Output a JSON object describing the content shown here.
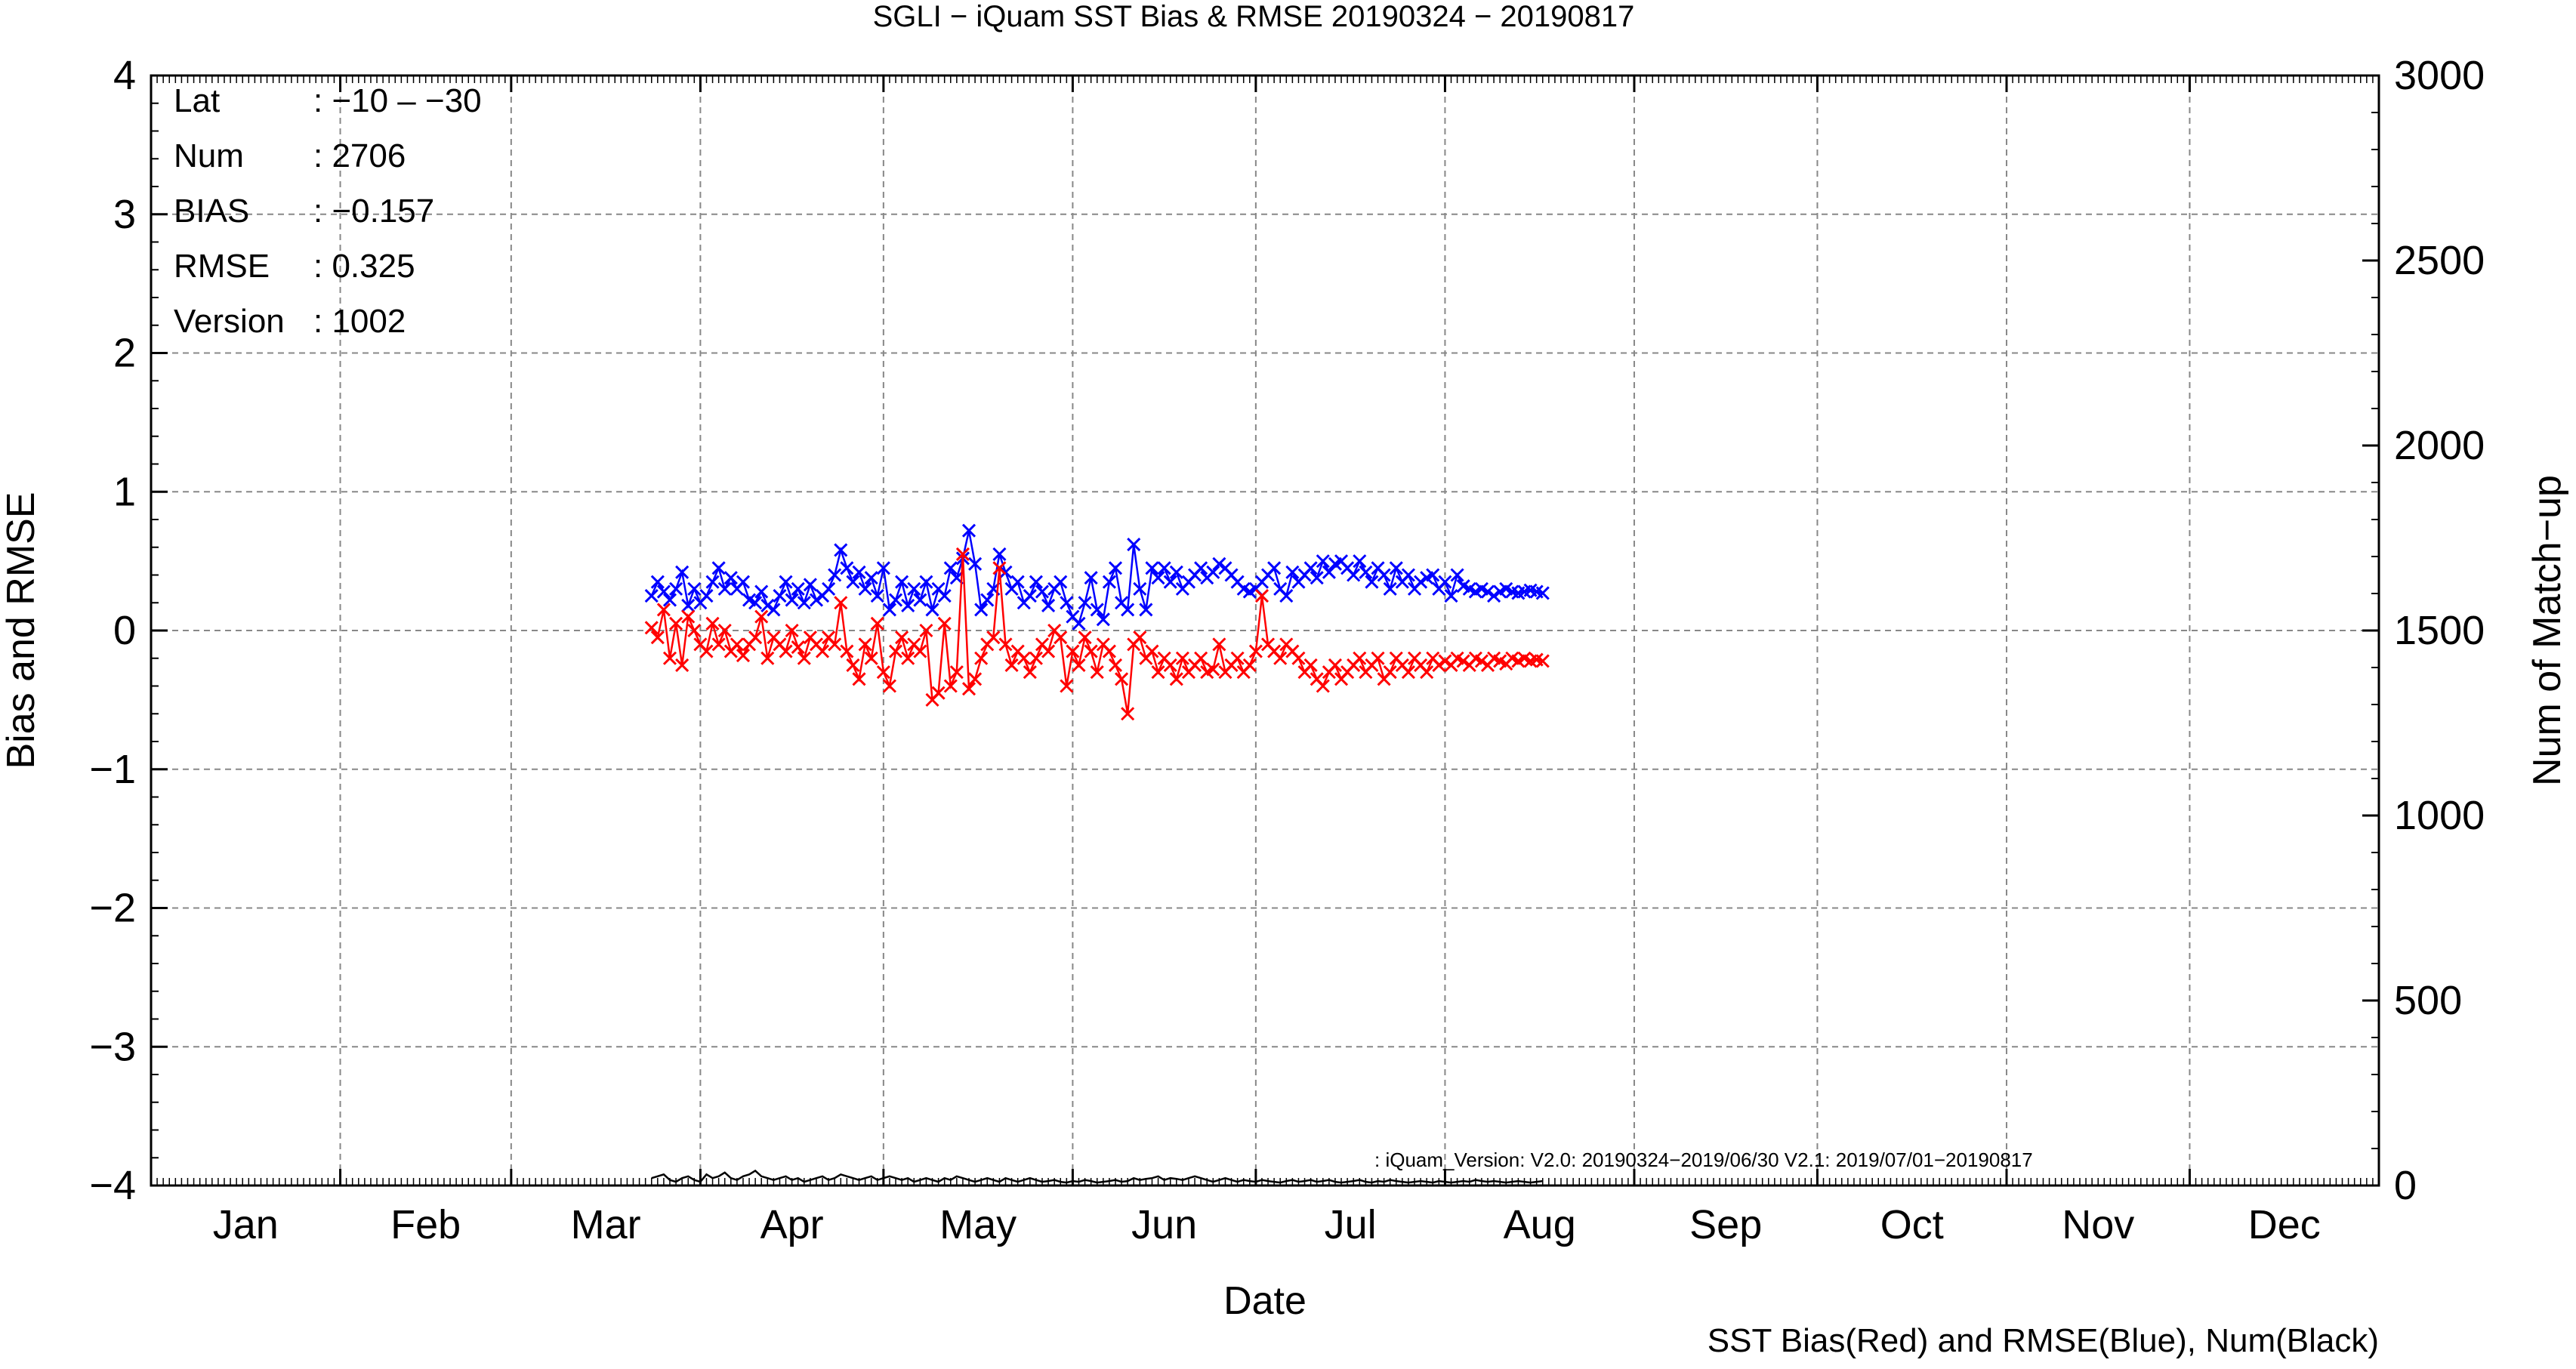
{
  "chart_data": {
    "type": "line",
    "title": "SGLI − iQuam  SST Bias & RMSE 20190324 − 20190817",
    "xlabel": "Date",
    "ylabel_left": "Bias and RMSE",
    "ylabel_right": "Num of Match−up",
    "caption": "SST Bias(Red) and RMSE(Blue), Num(Black)",
    "annotation": ": iQuam_Version: V2.0: 20190324−2019/06/30 V2.1: 2019/07/01−20190817",
    "months": [
      "Jan",
      "Feb",
      "Mar",
      "Apr",
      "May",
      "Jun",
      "Jul",
      "Aug",
      "Sep",
      "Oct",
      "Nov",
      "Dec"
    ],
    "ylim_left": [
      -4,
      4
    ],
    "yticks_left": [
      "4",
      "3",
      "2",
      "1",
      "0",
      "−1",
      "−2",
      "−3",
      "−4"
    ],
    "ylim_right": [
      0,
      3000
    ],
    "yticks_right": [
      "3000",
      "2500",
      "2000",
      "1500",
      "1000",
      "500",
      "0"
    ],
    "x_unit": "day of year 2019",
    "stats": [
      {
        "key": "Lat",
        "value": ": −10 – −30"
      },
      {
        "key": "Num",
        "value": ": 2706"
      },
      {
        "key": "BIAS",
        "value": ": −0.157"
      },
      {
        "key": "RMSE",
        "value": ": 0.325"
      },
      {
        "key": "Version",
        "value": ": 1002"
      }
    ],
    "series": [
      {
        "name": "RMSE",
        "color": "#0000ff",
        "axis": "left",
        "x": [
          83,
          84,
          85,
          86,
          87,
          88,
          89,
          90,
          91,
          92,
          93,
          94,
          95,
          96,
          97,
          98,
          99,
          100,
          101,
          102,
          103,
          104,
          105,
          106,
          107,
          108,
          109,
          110,
          111,
          112,
          113,
          114,
          115,
          116,
          117,
          118,
          119,
          120,
          121,
          122,
          123,
          124,
          125,
          126,
          127,
          128,
          129,
          130,
          131,
          132,
          133,
          134,
          135,
          136,
          137,
          138,
          139,
          140,
          141,
          142,
          143,
          144,
          145,
          146,
          147,
          148,
          149,
          150,
          151,
          152,
          153,
          154,
          155,
          156,
          157,
          158,
          159,
          160,
          161,
          162,
          163,
          164,
          165,
          166,
          167,
          168,
          169,
          170,
          171,
          172,
          173,
          174,
          175,
          176,
          177,
          178,
          179,
          180,
          181,
          182,
          183,
          184,
          185,
          186,
          187,
          188,
          189,
          190,
          191,
          192,
          193,
          194,
          195,
          196,
          197,
          198,
          199,
          200,
          201,
          202,
          203,
          204,
          205,
          206,
          207,
          208,
          209,
          210,
          211,
          212,
          213,
          214,
          215,
          216,
          217,
          218,
          219,
          220,
          221,
          222,
          223,
          224,
          225,
          226,
          227,
          228,
          229
        ],
        "values": [
          0.25,
          0.35,
          0.28,
          0.22,
          0.3,
          0.42,
          0.18,
          0.3,
          0.2,
          0.25,
          0.35,
          0.45,
          0.3,
          0.38,
          0.3,
          0.35,
          0.22,
          0.2,
          0.28,
          0.18,
          0.15,
          0.25,
          0.35,
          0.22,
          0.3,
          0.2,
          0.33,
          0.22,
          0.25,
          0.3,
          0.4,
          0.58,
          0.45,
          0.35,
          0.42,
          0.3,
          0.38,
          0.25,
          0.45,
          0.15,
          0.22,
          0.35,
          0.18,
          0.3,
          0.22,
          0.35,
          0.15,
          0.3,
          0.25,
          0.45,
          0.38,
          0.52,
          0.72,
          0.48,
          0.15,
          0.22,
          0.3,
          0.55,
          0.42,
          0.3,
          0.35,
          0.2,
          0.25,
          0.35,
          0.28,
          0.18,
          0.3,
          0.35,
          0.2,
          0.1,
          0.05,
          0.2,
          0.38,
          0.15,
          0.08,
          0.35,
          0.45,
          0.2,
          0.15,
          0.62,
          0.3,
          0.15,
          0.45,
          0.38,
          0.45,
          0.35,
          0.42,
          0.3,
          0.35,
          0.4,
          0.45,
          0.38,
          0.42,
          0.48,
          0.45,
          0.4,
          0.35,
          0.3,
          0.28,
          0.3,
          0.35,
          0.4,
          0.45,
          0.3,
          0.25,
          0.42,
          0.35,
          0.4,
          0.45,
          0.38,
          0.5,
          0.42,
          0.48,
          0.5,
          0.45,
          0.4,
          0.5,
          0.42,
          0.35,
          0.45,
          0.4,
          0.3,
          0.45,
          0.35,
          0.4,
          0.3,
          0.35,
          0.38,
          0.4,
          0.3,
          0.35,
          0.25,
          0.4,
          0.32,
          0.3,
          0.28,
          0.3,
          0.28,
          0.25,
          0.28,
          0.3,
          0.28,
          0.27,
          0.28,
          0.29,
          0.28,
          0.27
        ]
      },
      {
        "name": "BIAS",
        "color": "#ff0000",
        "axis": "left",
        "x": [
          83,
          84,
          85,
          86,
          87,
          88,
          89,
          90,
          91,
          92,
          93,
          94,
          95,
          96,
          97,
          98,
          99,
          100,
          101,
          102,
          103,
          104,
          105,
          106,
          107,
          108,
          109,
          110,
          111,
          112,
          113,
          114,
          115,
          116,
          117,
          118,
          119,
          120,
          121,
          122,
          123,
          124,
          125,
          126,
          127,
          128,
          129,
          130,
          131,
          132,
          133,
          134,
          135,
          136,
          137,
          138,
          139,
          140,
          141,
          142,
          143,
          144,
          145,
          146,
          147,
          148,
          149,
          150,
          151,
          152,
          153,
          154,
          155,
          156,
          157,
          158,
          159,
          160,
          161,
          162,
          163,
          164,
          165,
          166,
          167,
          168,
          169,
          170,
          171,
          172,
          173,
          174,
          175,
          176,
          177,
          178,
          179,
          180,
          181,
          182,
          183,
          184,
          185,
          186,
          187,
          188,
          189,
          190,
          191,
          192,
          193,
          194,
          195,
          196,
          197,
          198,
          199,
          200,
          201,
          202,
          203,
          204,
          205,
          206,
          207,
          208,
          209,
          210,
          211,
          212,
          213,
          214,
          215,
          216,
          217,
          218,
          219,
          220,
          221,
          222,
          223,
          224,
          225,
          226,
          227,
          228,
          229
        ],
        "values": [
          0.02,
          -0.05,
          0.15,
          -0.2,
          0.05,
          -0.25,
          0.1,
          0.0,
          -0.1,
          -0.15,
          0.05,
          -0.1,
          0.0,
          -0.15,
          -0.1,
          -0.18,
          -0.1,
          -0.05,
          0.1,
          -0.2,
          -0.05,
          -0.1,
          -0.15,
          0.0,
          -0.12,
          -0.2,
          -0.05,
          -0.1,
          -0.15,
          -0.05,
          -0.1,
          0.2,
          -0.15,
          -0.25,
          -0.35,
          -0.1,
          -0.2,
          0.05,
          -0.3,
          -0.4,
          -0.15,
          -0.05,
          -0.2,
          -0.1,
          -0.15,
          0.0,
          -0.5,
          -0.45,
          0.05,
          -0.4,
          -0.3,
          0.55,
          -0.42,
          -0.35,
          -0.2,
          -0.1,
          -0.05,
          0.45,
          -0.1,
          -0.25,
          -0.15,
          -0.2,
          -0.3,
          -0.2,
          -0.1,
          -0.15,
          0.0,
          -0.05,
          -0.4,
          -0.15,
          -0.25,
          -0.05,
          -0.15,
          -0.3,
          -0.1,
          -0.15,
          -0.25,
          -0.35,
          -0.6,
          -0.1,
          -0.05,
          -0.2,
          -0.15,
          -0.3,
          -0.2,
          -0.25,
          -0.35,
          -0.2,
          -0.3,
          -0.25,
          -0.2,
          -0.3,
          -0.28,
          -0.1,
          -0.3,
          -0.25,
          -0.2,
          -0.3,
          -0.25,
          -0.15,
          0.25,
          -0.1,
          -0.15,
          -0.2,
          -0.1,
          -0.15,
          -0.2,
          -0.3,
          -0.25,
          -0.35,
          -0.4,
          -0.3,
          -0.25,
          -0.35,
          -0.3,
          -0.25,
          -0.2,
          -0.3,
          -0.25,
          -0.2,
          -0.35,
          -0.3,
          -0.2,
          -0.25,
          -0.3,
          -0.2,
          -0.25,
          -0.3,
          -0.2,
          -0.25,
          -0.22,
          -0.25,
          -0.2,
          -0.22,
          -0.25,
          -0.2,
          -0.22,
          -0.25,
          -0.2,
          -0.22,
          -0.24,
          -0.2,
          -0.22,
          -0.2,
          -0.22,
          -0.21,
          -0.22
        ]
      },
      {
        "name": "Num",
        "color": "#000000",
        "axis": "right",
        "x": [
          83,
          84,
          85,
          86,
          87,
          88,
          89,
          90,
          91,
          92,
          93,
          94,
          95,
          96,
          97,
          98,
          99,
          100,
          101,
          102,
          103,
          104,
          105,
          106,
          107,
          108,
          109,
          110,
          111,
          112,
          113,
          114,
          115,
          116,
          117,
          118,
          119,
          120,
          121,
          122,
          123,
          124,
          125,
          126,
          127,
          128,
          129,
          130,
          131,
          132,
          133,
          134,
          135,
          136,
          137,
          138,
          139,
          140,
          141,
          142,
          143,
          144,
          145,
          146,
          147,
          148,
          149,
          150,
          151,
          152,
          153,
          154,
          155,
          156,
          157,
          158,
          159,
          160,
          161,
          162,
          163,
          164,
          165,
          166,
          167,
          168,
          169,
          170,
          171,
          172,
          173,
          174,
          175,
          176,
          177,
          178,
          179,
          180,
          181,
          182,
          183,
          184,
          185,
          186,
          187,
          188,
          189,
          190,
          191,
          192,
          193,
          194,
          195,
          196,
          197,
          198,
          199,
          200,
          201,
          202,
          203,
          204,
          205,
          206,
          207,
          208,
          209,
          210,
          211,
          212,
          213,
          214,
          215,
          216,
          217,
          218,
          219,
          220,
          221,
          222,
          223,
          224,
          225,
          226,
          227,
          228,
          229
        ],
        "values": [
          20,
          25,
          30,
          15,
          10,
          20,
          25,
          15,
          10,
          30,
          20,
          25,
          35,
          20,
          15,
          25,
          30,
          40,
          25,
          20,
          15,
          20,
          25,
          15,
          20,
          10,
          15,
          20,
          25,
          15,
          20,
          30,
          25,
          20,
          15,
          20,
          25,
          15,
          20,
          25,
          20,
          15,
          20,
          10,
          15,
          20,
          15,
          10,
          20,
          15,
          25,
          20,
          15,
          10,
          15,
          20,
          15,
          10,
          20,
          15,
          10,
          15,
          20,
          15,
          10,
          12,
          15,
          10,
          8,
          12,
          10,
          15,
          12,
          8,
          10,
          12,
          15,
          10,
          12,
          20,
          15,
          18,
          20,
          25,
          15,
          20,
          18,
          15,
          20,
          25,
          20,
          15,
          10,
          15,
          20,
          15,
          10,
          15,
          12,
          10,
          15,
          12,
          10,
          8,
          12,
          15,
          10,
          12,
          15,
          10,
          12,
          15,
          10,
          8,
          10,
          12,
          15,
          10,
          8,
          12,
          10,
          15,
          12,
          10,
          8,
          10,
          12,
          10,
          8,
          12,
          10,
          8,
          10,
          12,
          10,
          15,
          12,
          10,
          12,
          10,
          8,
          10,
          12,
          10,
          8,
          10,
          12
        ]
      }
    ]
  }
}
